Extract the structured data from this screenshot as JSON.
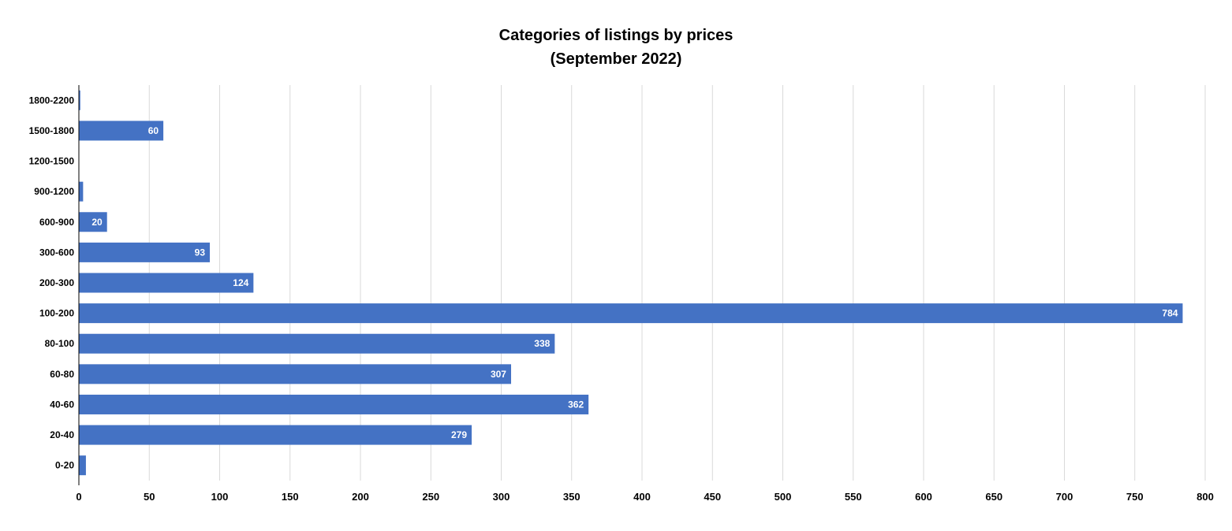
{
  "chart_data": {
    "type": "bar",
    "orientation": "horizontal",
    "title": "Categories of listings by prices",
    "subtitle": "(September 2022)",
    "categories": [
      "0-20",
      "20-40",
      "40-60",
      "60-80",
      "80-100",
      "100-200",
      "200-300",
      "300-600",
      "600-900",
      "900-1200",
      "1200-1500",
      "1500-1800",
      "1800-2200"
    ],
    "values": [
      5,
      279,
      362,
      307,
      338,
      784,
      124,
      93,
      20,
      3,
      0,
      60,
      1
    ],
    "data_labels": [
      "",
      "279",
      "362",
      "307",
      "338",
      "784",
      "124",
      "93",
      "20",
      "",
      "",
      "60",
      ""
    ],
    "xlim": [
      0,
      800
    ],
    "x_ticks": [
      "0",
      "50",
      "100",
      "150",
      "200",
      "250",
      "300",
      "350",
      "400",
      "450",
      "500",
      "550",
      "600",
      "650",
      "700",
      "750",
      "800"
    ],
    "grid": "vertical",
    "bar_color": "#4472C4",
    "grid_color": "#D9D9D9",
    "axis_color": "#000000",
    "legend": "none"
  }
}
